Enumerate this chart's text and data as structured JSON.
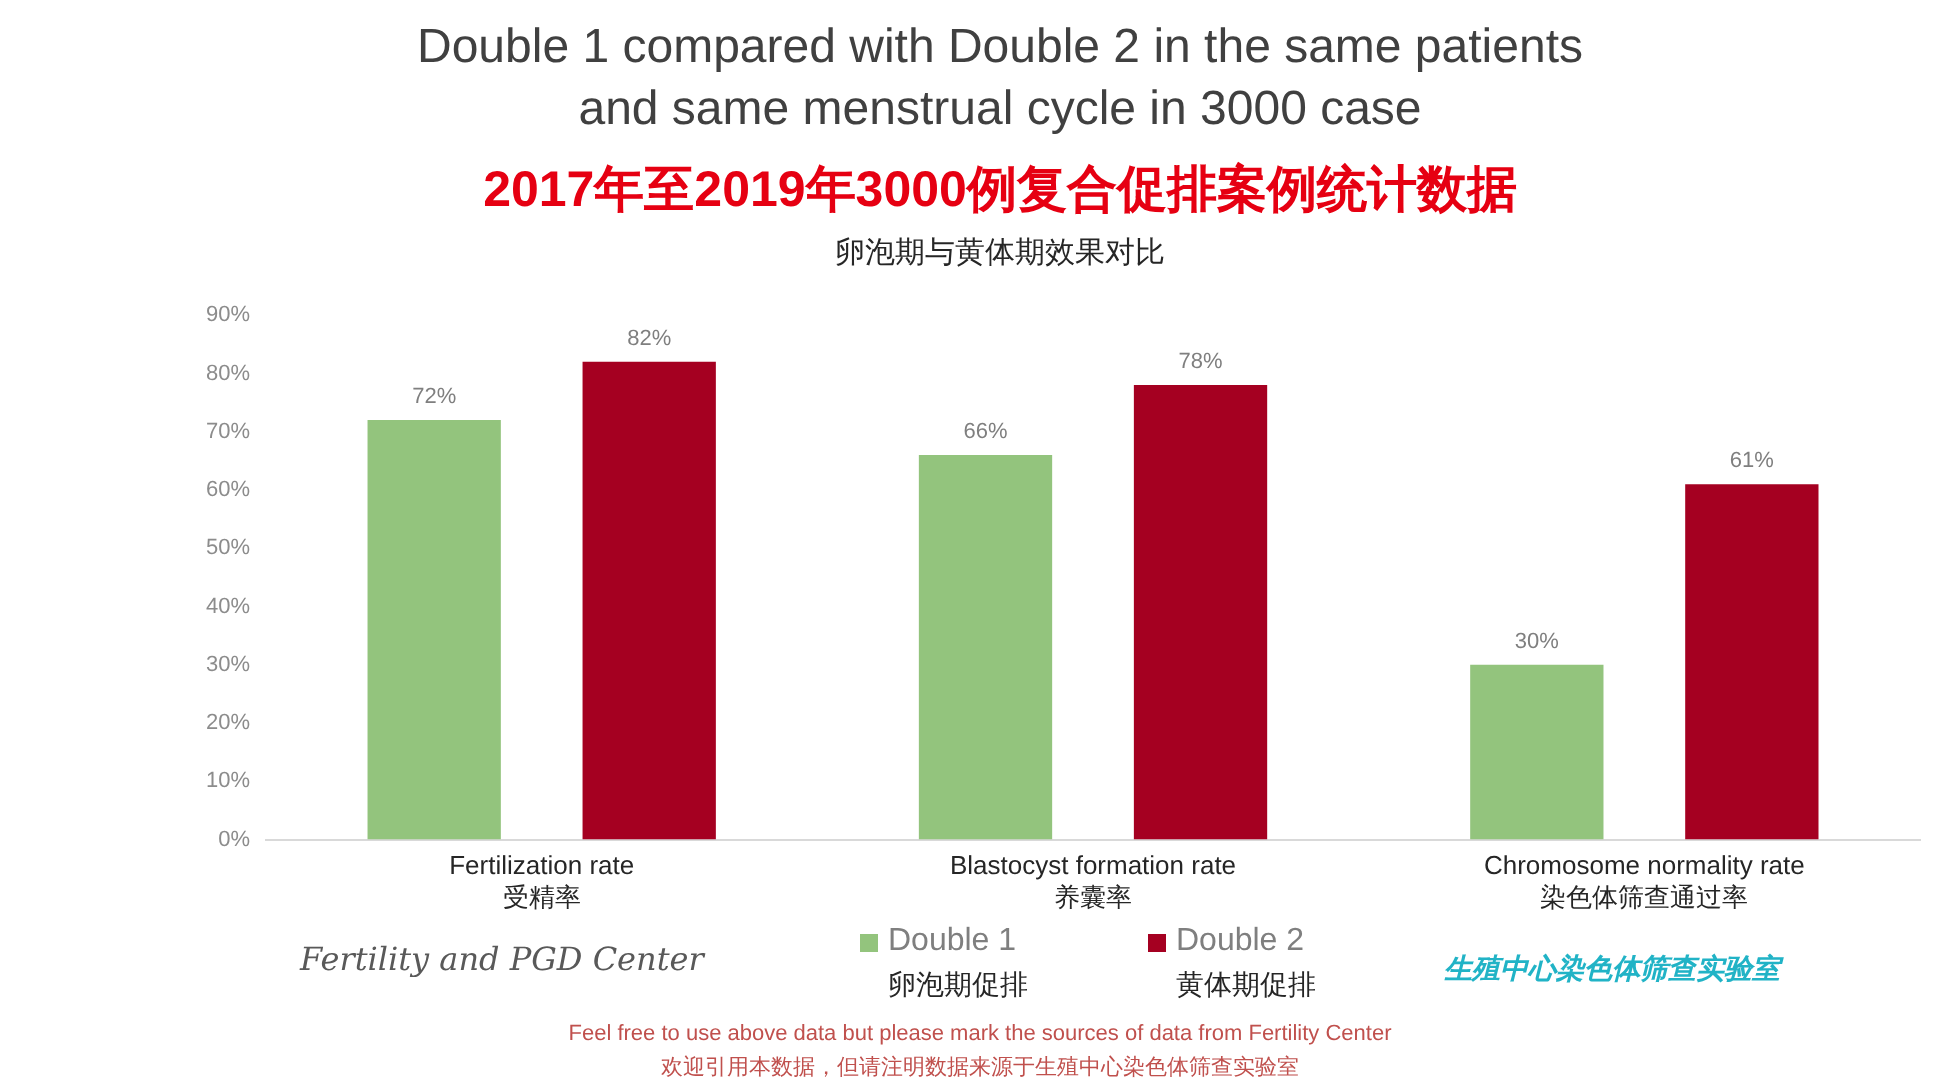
{
  "chart_data": {
    "type": "bar",
    "title": "Double 1 compared with Double 2 in the same patients and same menstrual cycle in 3000 case",
    "subtitle": "2017年至2019年3000例复合促排案例统计数据",
    "categories": [
      "Fertilization rate\n受精率",
      "Blastocyst formation rate\n养囊率",
      "Chromosome normality rate\n染色体筛查通过率"
    ],
    "series": [
      {
        "name": "Double 1\n卵泡期促排",
        "color": "#93c47d",
        "values": [
          72,
          66,
          30
        ],
        "value_labels": [
          "72%",
          "66%",
          "30%"
        ]
      },
      {
        "name": "Double 2\n黄体期促排",
        "color": "#a50021",
        "values": [
          82,
          78,
          61
        ],
        "value_labels": [
          "82%",
          "78%",
          "61%"
        ]
      }
    ],
    "ylim": [
      0,
      90
    ],
    "yticks": [
      {
        "value": 0,
        "label": "0%"
      },
      {
        "value": 10,
        "label": "10%"
      },
      {
        "value": 20,
        "label": "20%"
      },
      {
        "value": 30,
        "label": "30%"
      },
      {
        "value": 40,
        "label": "40%"
      },
      {
        "value": 50,
        "label": "50%"
      },
      {
        "value": 60,
        "label": "60%"
      },
      {
        "value": 70,
        "label": "70%"
      },
      {
        "value": 80,
        "label": "80%"
      },
      {
        "value": 90,
        "label": "90%"
      }
    ],
    "grid": false,
    "legend": "bottom",
    "annotations": [
      "卵泡期与黄体期效果对比",
      "Fertility and PGD Center",
      "生殖中心染色体筛查实验室",
      "Feel free to use above data but please mark the sources of data from Fertility Center",
      "欢迎引用本数据，但请注明数据来源于生殖中心染色体筛查实验室"
    ]
  }
}
